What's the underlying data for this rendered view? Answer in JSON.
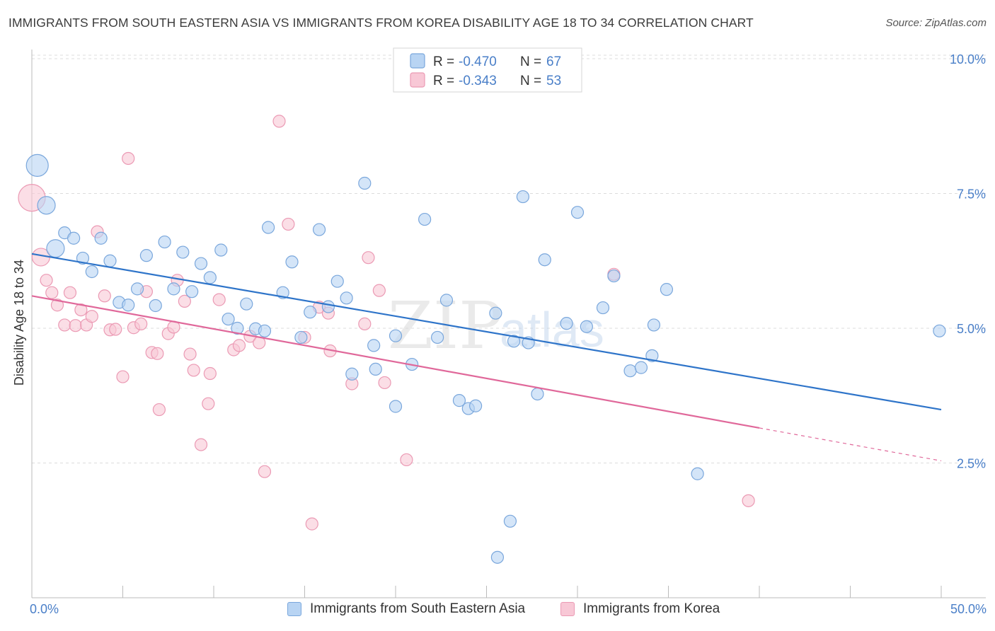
{
  "header": {
    "title": "IMMIGRANTS FROM SOUTH EASTERN ASIA VS IMMIGRANTS FROM KOREA DISABILITY AGE 18 TO 34 CORRELATION CHART",
    "source": "Source: ZipAtlas.com"
  },
  "watermark": "ZIPatlas",
  "colors": {
    "blue_fill": "#b8d4f3",
    "blue_stroke": "#7aa7dc",
    "blue_line": "#2e74c9",
    "pink_fill": "#f8c8d6",
    "pink_stroke": "#eb9ab4",
    "pink_line": "#e0689a",
    "axis_text": "#4a7fc8",
    "grid": "#dcdcdc"
  },
  "legend": {
    "rows": [
      {
        "r_label": "R =",
        "r_value": "-0.470",
        "n_label": "N =",
        "n_value": "67"
      },
      {
        "r_label": "R =",
        "r_value": "-0.343",
        "n_label": "N =",
        "n_value": "53"
      }
    ]
  },
  "chart_data": {
    "type": "scatter",
    "title": "IMMIGRANTS FROM SOUTH EASTERN ASIA VS IMMIGRANTS FROM KOREA DISABILITY AGE 18 TO 34 CORRELATION CHART",
    "xlabel": "",
    "ylabel": "Disability Age 18 to 34",
    "xlim": [
      0,
      50
    ],
    "ylim": [
      0,
      10.5
    ],
    "x_tick_labels": [
      "0.0%",
      "50.0%"
    ],
    "y_ticks": [
      2.5,
      5.0,
      7.5,
      10.0
    ],
    "y_tick_labels": [
      "2.5%",
      "5.0%",
      "7.5%",
      "10.0%"
    ],
    "grid": true,
    "series": [
      {
        "name": "Immigrants from South Eastern Asia",
        "r": -0.47,
        "n": 67,
        "trend": {
          "x0": 0,
          "y0": 6.38,
          "x1": 50,
          "y1": 3.49,
          "dashed_from": null
        },
        "points": [
          {
            "x": 0.3,
            "y": 8.02,
            "s": 3
          },
          {
            "x": 0.8,
            "y": 7.28,
            "s": 2
          },
          {
            "x": 1.3,
            "y": 6.48,
            "s": 2
          },
          {
            "x": 1.8,
            "y": 6.77,
            "s": 1
          },
          {
            "x": 2.3,
            "y": 6.67,
            "s": 1
          },
          {
            "x": 2.8,
            "y": 6.3,
            "s": 1
          },
          {
            "x": 3.3,
            "y": 6.05,
            "s": 1
          },
          {
            "x": 3.8,
            "y": 6.67,
            "s": 1
          },
          {
            "x": 4.3,
            "y": 6.25,
            "s": 1
          },
          {
            "x": 4.8,
            "y": 5.48,
            "s": 1
          },
          {
            "x": 5.3,
            "y": 5.43,
            "s": 1
          },
          {
            "x": 5.8,
            "y": 5.73,
            "s": 1
          },
          {
            "x": 6.3,
            "y": 6.35,
            "s": 1
          },
          {
            "x": 6.8,
            "y": 5.42,
            "s": 1
          },
          {
            "x": 7.3,
            "y": 6.6,
            "s": 1
          },
          {
            "x": 7.8,
            "y": 5.73,
            "s": 1
          },
          {
            "x": 8.3,
            "y": 6.41,
            "s": 1
          },
          {
            "x": 8.8,
            "y": 5.68,
            "s": 1
          },
          {
            "x": 9.3,
            "y": 6.2,
            "s": 1
          },
          {
            "x": 9.8,
            "y": 5.94,
            "s": 1
          },
          {
            "x": 10.4,
            "y": 6.45,
            "s": 1
          },
          {
            "x": 10.8,
            "y": 5.17,
            "s": 1
          },
          {
            "x": 11.3,
            "y": 5.0,
            "s": 1
          },
          {
            "x": 11.8,
            "y": 5.45,
            "s": 1
          },
          {
            "x": 12.3,
            "y": 4.99,
            "s": 1
          },
          {
            "x": 12.8,
            "y": 4.95,
            "s": 1
          },
          {
            "x": 13.0,
            "y": 6.87,
            "s": 1
          },
          {
            "x": 13.8,
            "y": 5.66,
            "s": 1
          },
          {
            "x": 14.3,
            "y": 6.23,
            "s": 1
          },
          {
            "x": 14.8,
            "y": 4.83,
            "s": 1
          },
          {
            "x": 15.3,
            "y": 5.3,
            "s": 1
          },
          {
            "x": 15.8,
            "y": 6.83,
            "s": 1
          },
          {
            "x": 16.3,
            "y": 5.4,
            "s": 1
          },
          {
            "x": 16.8,
            "y": 5.87,
            "s": 1
          },
          {
            "x": 17.3,
            "y": 5.56,
            "s": 1
          },
          {
            "x": 17.6,
            "y": 4.15,
            "s": 1
          },
          {
            "x": 18.3,
            "y": 7.69,
            "s": 1
          },
          {
            "x": 18.8,
            "y": 4.68,
            "s": 1
          },
          {
            "x": 18.9,
            "y": 4.24,
            "s": 1
          },
          {
            "x": 20.0,
            "y": 3.55,
            "s": 1
          },
          {
            "x": 20.0,
            "y": 4.86,
            "s": 1
          },
          {
            "x": 20.9,
            "y": 4.33,
            "s": 1
          },
          {
            "x": 21.6,
            "y": 7.02,
            "s": 1
          },
          {
            "x": 22.3,
            "y": 4.83,
            "s": 1
          },
          {
            "x": 22.8,
            "y": 5.52,
            "s": 1
          },
          {
            "x": 23.5,
            "y": 3.66,
            "s": 1
          },
          {
            "x": 24.0,
            "y": 3.51,
            "s": 1
          },
          {
            "x": 24.4,
            "y": 3.56,
            "s": 1
          },
          {
            "x": 25.5,
            "y": 5.28,
            "s": 1
          },
          {
            "x": 25.6,
            "y": 0.75,
            "s": 1
          },
          {
            "x": 26.3,
            "y": 1.42,
            "s": 1
          },
          {
            "x": 26.5,
            "y": 4.76,
            "s": 1
          },
          {
            "x": 27.0,
            "y": 7.44,
            "s": 1
          },
          {
            "x": 27.3,
            "y": 4.73,
            "s": 1
          },
          {
            "x": 27.8,
            "y": 3.78,
            "s": 1
          },
          {
            "x": 28.2,
            "y": 6.27,
            "s": 1
          },
          {
            "x": 29.4,
            "y": 5.09,
            "s": 1
          },
          {
            "x": 30.0,
            "y": 7.15,
            "s": 1
          },
          {
            "x": 30.5,
            "y": 5.03,
            "s": 1
          },
          {
            "x": 31.4,
            "y": 5.38,
            "s": 1
          },
          {
            "x": 32.0,
            "y": 5.97,
            "s": 1
          },
          {
            "x": 32.9,
            "y": 4.21,
            "s": 1
          },
          {
            "x": 33.5,
            "y": 4.27,
            "s": 1
          },
          {
            "x": 34.1,
            "y": 4.49,
            "s": 1
          },
          {
            "x": 34.2,
            "y": 5.06,
            "s": 1
          },
          {
            "x": 34.9,
            "y": 5.72,
            "s": 1
          },
          {
            "x": 36.6,
            "y": 2.3,
            "s": 1
          },
          {
            "x": 49.9,
            "y": 4.95,
            "s": 1
          }
        ]
      },
      {
        "name": "Immigrants from Korea",
        "r": -0.343,
        "n": 53,
        "trend": {
          "x0": 0,
          "y0": 5.6,
          "x1": 40,
          "y1": 3.15,
          "x2": 50,
          "y2": 2.54
        },
        "points": [
          {
            "x": 0.0,
            "y": 7.42,
            "s": 4
          },
          {
            "x": 0.5,
            "y": 6.32,
            "s": 2
          },
          {
            "x": 0.8,
            "y": 5.89,
            "s": 1
          },
          {
            "x": 1.1,
            "y": 5.66,
            "s": 1
          },
          {
            "x": 1.4,
            "y": 5.43,
            "s": 1
          },
          {
            "x": 1.8,
            "y": 5.06,
            "s": 1
          },
          {
            "x": 2.1,
            "y": 5.66,
            "s": 1
          },
          {
            "x": 2.4,
            "y": 5.05,
            "s": 1
          },
          {
            "x": 2.7,
            "y": 5.34,
            "s": 1
          },
          {
            "x": 3.0,
            "y": 5.06,
            "s": 1
          },
          {
            "x": 3.3,
            "y": 5.22,
            "s": 1
          },
          {
            "x": 3.6,
            "y": 6.79,
            "s": 1
          },
          {
            "x": 4.0,
            "y": 5.6,
            "s": 1
          },
          {
            "x": 4.3,
            "y": 4.97,
            "s": 1
          },
          {
            "x": 4.6,
            "y": 4.98,
            "s": 1
          },
          {
            "x": 5.0,
            "y": 4.1,
            "s": 1
          },
          {
            "x": 5.3,
            "y": 8.15,
            "s": 1
          },
          {
            "x": 5.6,
            "y": 5.01,
            "s": 1
          },
          {
            "x": 6.0,
            "y": 5.08,
            "s": 1
          },
          {
            "x": 6.3,
            "y": 5.68,
            "s": 1
          },
          {
            "x": 6.6,
            "y": 4.55,
            "s": 1
          },
          {
            "x": 6.9,
            "y": 4.53,
            "s": 1
          },
          {
            "x": 7.0,
            "y": 3.49,
            "s": 1
          },
          {
            "x": 7.5,
            "y": 4.9,
            "s": 1
          },
          {
            "x": 7.8,
            "y": 5.02,
            "s": 1
          },
          {
            "x": 8.0,
            "y": 5.89,
            "s": 1
          },
          {
            "x": 8.4,
            "y": 5.5,
            "s": 1
          },
          {
            "x": 8.7,
            "y": 4.52,
            "s": 1
          },
          {
            "x": 8.9,
            "y": 4.22,
            "s": 1
          },
          {
            "x": 9.3,
            "y": 2.84,
            "s": 1
          },
          {
            "x": 9.7,
            "y": 3.6,
            "s": 1
          },
          {
            "x": 9.8,
            "y": 4.16,
            "s": 1
          },
          {
            "x": 10.3,
            "y": 5.53,
            "s": 1
          },
          {
            "x": 11.1,
            "y": 4.6,
            "s": 1
          },
          {
            "x": 11.4,
            "y": 4.68,
            "s": 1
          },
          {
            "x": 12.0,
            "y": 4.85,
            "s": 1
          },
          {
            "x": 12.5,
            "y": 4.73,
            "s": 1
          },
          {
            "x": 12.8,
            "y": 2.34,
            "s": 1
          },
          {
            "x": 13.6,
            "y": 8.84,
            "s": 1
          },
          {
            "x": 14.1,
            "y": 6.93,
            "s": 1
          },
          {
            "x": 15.0,
            "y": 4.83,
            "s": 1
          },
          {
            "x": 15.4,
            "y": 1.37,
            "s": 1
          },
          {
            "x": 15.8,
            "y": 5.39,
            "s": 1
          },
          {
            "x": 16.3,
            "y": 5.28,
            "s": 1
          },
          {
            "x": 16.4,
            "y": 4.58,
            "s": 1
          },
          {
            "x": 17.6,
            "y": 3.97,
            "s": 1
          },
          {
            "x": 18.3,
            "y": 5.08,
            "s": 1
          },
          {
            "x": 18.5,
            "y": 6.31,
            "s": 1
          },
          {
            "x": 19.1,
            "y": 5.7,
            "s": 1
          },
          {
            "x": 19.4,
            "y": 3.99,
            "s": 1
          },
          {
            "x": 20.6,
            "y": 2.56,
            "s": 1
          },
          {
            "x": 32.0,
            "y": 6.0,
            "s": 1
          },
          {
            "x": 39.4,
            "y": 1.8,
            "s": 1
          }
        ]
      }
    ]
  },
  "bottom_legend": {
    "items": [
      {
        "label": "Immigrants from South Eastern Asia"
      },
      {
        "label": "Immigrants from Korea"
      }
    ]
  },
  "axes": {
    "y_label": "Disability Age 18 to 34",
    "x_min_label": "0.0%",
    "x_max_label": "50.0%"
  }
}
